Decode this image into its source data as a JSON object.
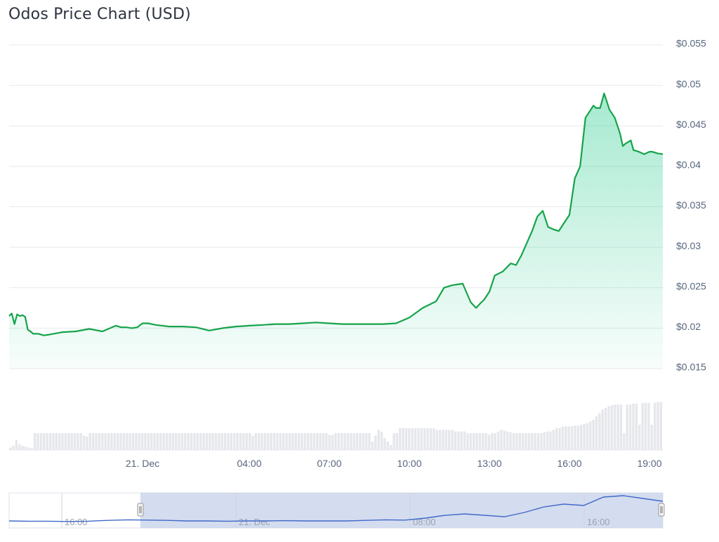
{
  "title": "Odos Price Chart (USD)",
  "colors": {
    "price_line": "#16a34a",
    "area_fill": "#16c784",
    "volume_bar": "#e5e7eb",
    "grid": "#e6e9ee",
    "navigator_line": "#4169c8",
    "navigator_mask": "#c6d0ea"
  },
  "chart_data": {
    "type": "line",
    "title": "Odos Price Chart (USD)",
    "y_unit": "USD",
    "ylim": [
      0.015,
      0.055
    ],
    "y_ticks": [
      "$0.055",
      "$0.05",
      "$0.045",
      "$0.04",
      "$0.035",
      "$0.03",
      "$0.025",
      "$0.02",
      "$0.015"
    ],
    "x_ticks": [
      "21. Dec",
      "04:00",
      "07:00",
      "10:00",
      "13:00",
      "16:00",
      "19:00"
    ],
    "grid": true,
    "legend": "none",
    "series": [
      {
        "kind": "price",
        "x_hours": [
          -5.0,
          -4.9,
          -4.8,
          -4.7,
          -4.6,
          -4.5,
          -4.4,
          -4.3,
          -4.2,
          -4.1,
          -3.9,
          -3.7,
          -3.5,
          -3.0,
          -2.5,
          -2.0,
          -1.5,
          -1.0,
          -0.8,
          -0.6,
          -0.4,
          -0.2,
          0.0,
          0.2,
          0.5,
          1.0,
          1.5,
          2.0,
          2.5,
          3.0,
          3.5,
          4.0,
          4.5,
          5.0,
          5.5,
          6.0,
          6.5,
          7.0,
          7.5,
          8.0,
          8.5,
          9.0,
          9.5,
          10.0,
          10.5,
          11.0,
          11.3,
          11.6,
          12.0,
          12.3,
          12.5,
          12.7,
          12.8,
          13.0,
          13.2,
          13.5,
          13.8,
          14.0,
          14.2,
          14.4,
          14.6,
          14.8,
          15.0,
          15.2,
          15.4,
          15.6,
          15.8,
          16.0,
          16.2,
          16.4,
          16.6,
          16.8,
          16.9,
          17.0,
          17.15,
          17.3,
          17.5,
          17.7,
          17.9,
          18.0,
          18.1,
          18.2,
          18.3,
          18.4,
          18.6,
          18.8,
          19.0,
          19.1,
          19.3,
          19.5
        ],
        "values": [
          0.0215,
          0.0218,
          0.0205,
          0.0217,
          0.0215,
          0.0216,
          0.0214,
          0.0198,
          0.0196,
          0.0193,
          0.0193,
          0.0191,
          0.0192,
          0.0195,
          0.0196,
          0.0199,
          0.0196,
          0.0203,
          0.0201,
          0.0201,
          0.02,
          0.0201,
          0.0206,
          0.0206,
          0.0204,
          0.0202,
          0.0202,
          0.0201,
          0.0197,
          0.02,
          0.0202,
          0.0203,
          0.0204,
          0.0205,
          0.0205,
          0.0206,
          0.0207,
          0.0206,
          0.0205,
          0.0205,
          0.0205,
          0.0205,
          0.0206,
          0.0213,
          0.0225,
          0.0233,
          0.025,
          0.0253,
          0.0255,
          0.0232,
          0.0225,
          0.0232,
          0.0235,
          0.0245,
          0.0265,
          0.027,
          0.028,
          0.0278,
          0.029,
          0.0305,
          0.032,
          0.0338,
          0.0345,
          0.0325,
          0.0322,
          0.032,
          0.033,
          0.034,
          0.0385,
          0.04,
          0.046,
          0.047,
          0.0475,
          0.0472,
          0.0472,
          0.049,
          0.047,
          0.046,
          0.044,
          0.0425,
          0.0428,
          0.043,
          0.0432,
          0.042,
          0.0418,
          0.0415,
          0.0418,
          0.0418,
          0.0416,
          0.0415
        ]
      },
      {
        "kind": "volume",
        "values": [
          0.15,
          0.25,
          0.6,
          0.35,
          0.25,
          0.2,
          0.15,
          0.1,
          1.0,
          1.0,
          1.0,
          1.0,
          1.0,
          1.0,
          1.0,
          1.0,
          1.0,
          1.0,
          1.0,
          1.0,
          1.0,
          1.0,
          1.0,
          1.0,
          0.85,
          0.8,
          1.0,
          1.0,
          1.0,
          1.0,
          1.0,
          1.0,
          1.0,
          1.0,
          1.0,
          1.0,
          1.0,
          1.0,
          1.0,
          1.0,
          1.0,
          1.0,
          1.0,
          1.0,
          1.0,
          1.0,
          1.0,
          1.0,
          1.0,
          1.0,
          1.0,
          1.0,
          1.0,
          1.0,
          1.0,
          1.0,
          1.0,
          1.0,
          1.0,
          1.0,
          1.0,
          1.0,
          1.0,
          1.0,
          1.0,
          1.0,
          1.0,
          1.0,
          1.0,
          1.0,
          1.0,
          1.0,
          1.0,
          1.0,
          1.0,
          1.0,
          1.0,
          1.0,
          1.0,
          0.85,
          1.0,
          1.0,
          1.0,
          1.0,
          1.0,
          1.0,
          1.0,
          1.0,
          1.0,
          1.0,
          1.0,
          1.0,
          1.0,
          1.0,
          1.0,
          1.0,
          1.0,
          1.0,
          1.0,
          1.0,
          1.0,
          1.0,
          1.0,
          1.0,
          0.9,
          0.9,
          1.0,
          1.0,
          1.0,
          1.0,
          1.0,
          1.0,
          1.0,
          1.0,
          1.0,
          1.0,
          1.0,
          1.0,
          0.5,
          0.85,
          1.2,
          1.1,
          0.7,
          0.5,
          0.3,
          1.0,
          1.0,
          1.3,
          1.3,
          1.3,
          1.3,
          1.3,
          1.3,
          1.3,
          1.3,
          1.3,
          1.3,
          1.3,
          1.3,
          1.2,
          1.2,
          1.2,
          1.2,
          1.2,
          1.2,
          1.1,
          1.1,
          1.1,
          1.1,
          1.0,
          1.0,
          1.0,
          1.0,
          1.0,
          1.0,
          1.0,
          0.9,
          1.0,
          1.0,
          1.1,
          1.2,
          1.15,
          1.1,
          1.05,
          1.0,
          1.0,
          1.0,
          1.0,
          1.0,
          1.0,
          1.0,
          1.0,
          1.0,
          1.0,
          1.05,
          1.1,
          1.1,
          1.2,
          1.3,
          1.3,
          1.4,
          1.4,
          1.4,
          1.4,
          1.45,
          1.45,
          1.5,
          1.55,
          1.6,
          1.7,
          1.8,
          2.0,
          2.2,
          2.4,
          2.5,
          2.6,
          2.65,
          2.7,
          2.7,
          2.7,
          1.0,
          2.7,
          2.7,
          2.75,
          2.75,
          1.5,
          2.8,
          2.8,
          2.8,
          1.5,
          2.8,
          2.85,
          2.85
        ]
      }
    ],
    "navigator": {
      "x_ticks": [
        "16:00",
        "21. Dec",
        "08:00",
        "16:00"
      ],
      "values": [
        0.1,
        0.09,
        0.09,
        0.08,
        0.09,
        0.12,
        0.14,
        0.13,
        0.12,
        0.1,
        0.1,
        0.09,
        0.1,
        0.1,
        0.11,
        0.1,
        0.1,
        0.1,
        0.12,
        0.14,
        0.13,
        0.2,
        0.3,
        0.35,
        0.3,
        0.25,
        0.4,
        0.6,
        0.7,
        0.65,
        0.95,
        1.0,
        0.9,
        0.8
      ]
    }
  }
}
